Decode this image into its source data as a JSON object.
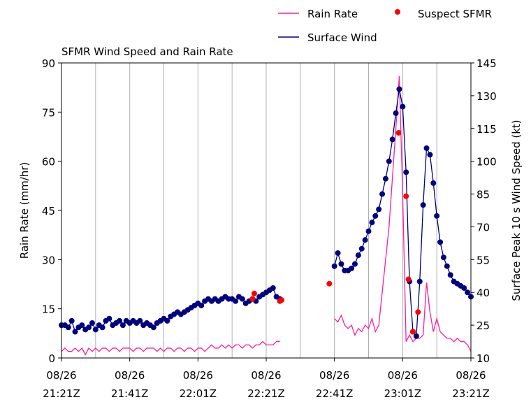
{
  "chart_data": {
    "type": "line",
    "title": "SFMR Wind Speed and Rain Rate",
    "ylabel": "Rain Rate (mm/hr)",
    "y2label": "Surface Peak 10 s Wind Speed (kt)",
    "legend": "upper right",
    "grid": true,
    "xlim": [
      0,
      120
    ],
    "xticks": [
      {
        "value": 0,
        "label": "08/26\n21:21Z"
      },
      {
        "value": 20,
        "label": "08/26\n21:41Z"
      },
      {
        "value": 40,
        "label": "08/26\n22:01Z"
      },
      {
        "value": 60,
        "label": "08/26\n22:21Z"
      },
      {
        "value": 80,
        "label": "08/26\n22:41Z"
      },
      {
        "value": 100,
        "label": "08/26\n23:01Z"
      },
      {
        "value": 120,
        "label": "08/26\n23:21Z"
      }
    ],
    "xminorticks": [
      10,
      30,
      50,
      70,
      90,
      110
    ],
    "ylim": [
      0,
      90
    ],
    "yticks": [
      0,
      15,
      30,
      45,
      60,
      75,
      90
    ],
    "y2lim": [
      10,
      145
    ],
    "y2ticks": [
      10,
      25,
      40,
      55,
      70,
      85,
      100,
      115,
      130,
      145
    ],
    "x": [
      0,
      1,
      2,
      3,
      4,
      5,
      6,
      7,
      8,
      9,
      10,
      11,
      12,
      13,
      14,
      15,
      16,
      17,
      18,
      19,
      20,
      21,
      22,
      23,
      24,
      25,
      26,
      27,
      28,
      29,
      30,
      31,
      32,
      33,
      34,
      35,
      36,
      37,
      38,
      39,
      40,
      41,
      42,
      43,
      44,
      45,
      46,
      47,
      48,
      49,
      50,
      51,
      52,
      53,
      54,
      55,
      56,
      57,
      58,
      59,
      60,
      61,
      62,
      63,
      64,
      65,
      66,
      67,
      68,
      69,
      70,
      71,
      72,
      73,
      74,
      75,
      76,
      77,
      78,
      79,
      80,
      81,
      82,
      83,
      84,
      85,
      86,
      87,
      88,
      89,
      90,
      91,
      92,
      93,
      94,
      95,
      96,
      97,
      98,
      99,
      100,
      101,
      102,
      103,
      104,
      105,
      106,
      107,
      108,
      109,
      110,
      111,
      112,
      113,
      114,
      115,
      116,
      117,
      118,
      119,
      120
    ],
    "series": [
      {
        "name": "Rain Rate",
        "color": "#ff1ca0",
        "axis": "y",
        "values": [
          2,
          3,
          2,
          2,
          3,
          2,
          3,
          1,
          3,
          2,
          3,
          2,
          3,
          3,
          2,
          3,
          3,
          2,
          3,
          3,
          3,
          2,
          3,
          3,
          2,
          3,
          3,
          3,
          2,
          3,
          2,
          3,
          3,
          2,
          3,
          3,
          2,
          3,
          3,
          2,
          3,
          3,
          2,
          3,
          4,
          3,
          3,
          4,
          3,
          4,
          3,
          4,
          4,
          3,
          4,
          4,
          3,
          4,
          4,
          5,
          4,
          4,
          4,
          5,
          5,
          null,
          null,
          null,
          null,
          null,
          null,
          null,
          null,
          null,
          null,
          null,
          null,
          null,
          null,
          null,
          12,
          11,
          13,
          10,
          9,
          10,
          7,
          9,
          8,
          10,
          9,
          12,
          8,
          10,
          20,
          30,
          40,
          55,
          70,
          86,
          50,
          5,
          7,
          5,
          6,
          6,
          7,
          23,
          14,
          8,
          12,
          8,
          7,
          6,
          6,
          5,
          6,
          5,
          5,
          4,
          2
        ]
      },
      {
        "name": "Surface Wind",
        "color": "#000080",
        "axis": "y2",
        "values": [
          25,
          25,
          24,
          27,
          22,
          24,
          25,
          23,
          24,
          26,
          23,
          25,
          24,
          27,
          28,
          25,
          26,
          27,
          25,
          27,
          26,
          27,
          26,
          27,
          25,
          26,
          25,
          24,
          26,
          27,
          28,
          27,
          29,
          30,
          31,
          30,
          31,
          32,
          33,
          34,
          35,
          34,
          36,
          37,
          36,
          37,
          36,
          37,
          38,
          37,
          37,
          36,
          38,
          37,
          35,
          36,
          37,
          36,
          38,
          39,
          40,
          41,
          42,
          38,
          37,
          null,
          null,
          null,
          null,
          null,
          null,
          null,
          null,
          null,
          null,
          null,
          null,
          null,
          null,
          null,
          52,
          58,
          53,
          50,
          50,
          51,
          53,
          57,
          60,
          64,
          68,
          72,
          75,
          78,
          85,
          92,
          100,
          110,
          122,
          133,
          125,
          95,
          45,
          22,
          20,
          45,
          80,
          106,
          103,
          90,
          75,
          63,
          56,
          52,
          48,
          45,
          44,
          43,
          42,
          40,
          38
        ]
      }
    ],
    "suspect": {
      "name": "Suspect SFMR",
      "color": "#ff0000",
      "axis": "y2",
      "x": [
        56,
        56.5,
        64,
        64.5,
        78.5,
        98.8,
        101,
        101.7,
        103,
        104.5
      ],
      "values": [
        37,
        39.5,
        36,
        36.5,
        44,
        113,
        84,
        46,
        22,
        31
      ]
    }
  }
}
